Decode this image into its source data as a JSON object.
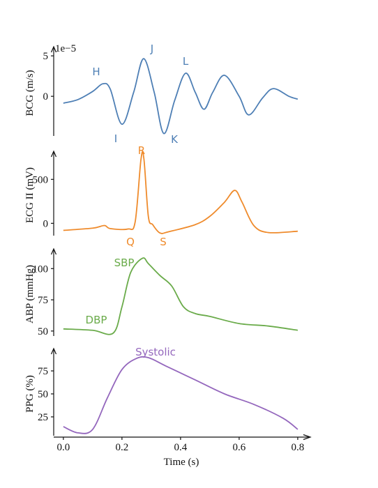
{
  "chart_data": [
    {
      "type": "line",
      "ylabel": "BCG (m/s)",
      "offset_label": "1e−5",
      "color": "#4e7fb5",
      "x": [
        0.0,
        0.05,
        0.1,
        0.135,
        0.16,
        0.2,
        0.24,
        0.274,
        0.31,
        0.343,
        0.38,
        0.417,
        0.45,
        0.48,
        0.51,
        0.55,
        0.6,
        0.633,
        0.68,
        0.717,
        0.77,
        0.8
      ],
      "values": [
        -0.85,
        -0.4,
        0.6,
        1.55,
        0.9,
        -3.45,
        0.5,
        4.65,
        0.5,
        -4.6,
        -0.5,
        2.85,
        0.5,
        -1.6,
        0.5,
        2.6,
        0,
        -2.3,
        -0.2,
        0.95,
        0,
        -0.35
      ],
      "xlim": [
        -0.033,
        0.824
      ],
      "ylim": [
        -4.9,
        5.7
      ],
      "yticks": [
        0,
        5
      ],
      "annotations": [
        "H",
        "I",
        "J",
        "K",
        "L"
      ]
    },
    {
      "type": "line",
      "ylabel": "ECG II (mV)",
      "color": "#ef8b2c",
      "x": [
        0.0,
        0.1,
        0.14,
        0.16,
        0.22,
        0.245,
        0.265,
        0.275,
        0.29,
        0.305,
        0.33,
        0.36,
        0.45,
        0.5,
        0.55,
        0.585,
        0.61,
        0.65,
        0.7,
        0.8
      ],
      "values": [
        -80,
        -55,
        -25,
        -60,
        -65,
        15,
        730,
        730,
        80,
        -15,
        -110,
        -95,
        -15,
        80,
        240,
        375,
        240,
        -25,
        -105,
        -90
      ],
      "xlim": [
        -0.033,
        0.824
      ],
      "ylim": [
        -140,
        780
      ],
      "yticks": [
        0,
        500
      ],
      "annotations": [
        "R",
        "Q",
        "S"
      ]
    },
    {
      "type": "line",
      "ylabel": "ABP (mmHg)",
      "color": "#6aab4a",
      "x": [
        0.0,
        0.1,
        0.17,
        0.2,
        0.23,
        0.27,
        0.29,
        0.33,
        0.37,
        0.41,
        0.45,
        0.5,
        0.6,
        0.7,
        0.8
      ],
      "values": [
        51.7,
        50.6,
        48.3,
        69.4,
        97,
        108.3,
        104,
        94.4,
        86,
        69.4,
        64,
        61.7,
        56,
        54,
        50.6
      ],
      "xlim": [
        -0.033,
        0.824
      ],
      "ylim": [
        46,
        113
      ],
      "yticks": [
        50,
        75,
        100
      ],
      "annotations": [
        "SBP",
        "DBP"
      ]
    },
    {
      "type": "line",
      "ylabel": "PPG (%)",
      "color": "#9467bd",
      "x": [
        0.0,
        0.05,
        0.1,
        0.15,
        0.2,
        0.25,
        0.29,
        0.35,
        0.45,
        0.55,
        0.65,
        0.75,
        0.8
      ],
      "values": [
        14.4,
        7.6,
        11.4,
        45.5,
        76.5,
        88.6,
        89.4,
        80.3,
        65.2,
        50,
        38.6,
        23.5,
        11.4
      ],
      "xlim": [
        -0.033,
        0.824
      ],
      "ylim": [
        4.5,
        95.5
      ],
      "yticks": [
        25,
        50,
        75
      ],
      "xlabel": "Time (s)",
      "xticks": [
        {
          "value": 0.0,
          "label": "0.0"
        },
        0.2,
        0.4,
        0.6,
        0.8
      ],
      "annotations": [
        "Systolic"
      ]
    }
  ]
}
